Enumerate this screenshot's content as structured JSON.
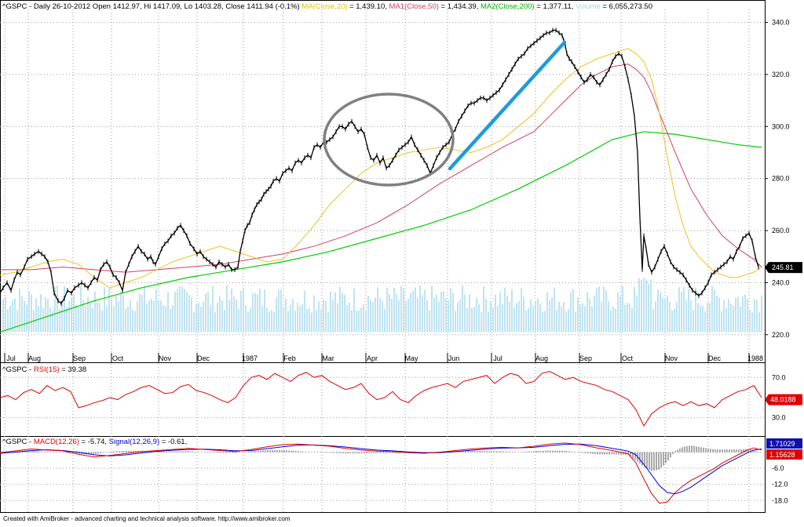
{
  "header": {
    "price": {
      "parts": [
        {
          "text": "^GSPC - Daily 26-10-2012 Open 1412.97, Hi 1417.09, Lo 1403.28, Close 1411.94 (-0.1%) ",
          "color": "#000000"
        },
        {
          "text": "MA(Close,20)",
          "color": "#e8c000"
        },
        {
          "text": " = 1,439.10, ",
          "color": "#000000"
        },
        {
          "text": "MA1(Close,50)",
          "color": "#d04060"
        },
        {
          "text": " = 1,434.39, ",
          "color": "#000000"
        },
        {
          "text": "MA2(Close,200)",
          "color": "#00b000"
        },
        {
          "text": " = 1,377.11, ",
          "color": "#000000"
        },
        {
          "text": "Volume",
          "color": "#a8d8e8"
        },
        {
          "text": " = 6,055,273.50",
          "color": "#000000"
        }
      ]
    },
    "rsi": {
      "parts": [
        {
          "text": "^GSPC - ",
          "color": "#000000"
        },
        {
          "text": "RSI(15)",
          "color": "#e00000"
        },
        {
          "text": " = 39.38",
          "color": "#000000"
        }
      ]
    },
    "macd": {
      "parts": [
        {
          "text": "^GSPC - ",
          "color": "#000000"
        },
        {
          "text": "MACD(12,26)",
          "color": "#e00000"
        },
        {
          "text": " = -5.74, ",
          "color": "#000000"
        },
        {
          "text": "Signal(12,26,9)",
          "color": "#0000e0"
        },
        {
          "text": " = -0.61, ",
          "color": "#000000"
        }
      ]
    }
  },
  "footer": {
    "credit": "Created with AmiBroker - advanced charting and technical analysis software. http://www.amibroker.com"
  },
  "colors": {
    "price": "#000000",
    "ma20": "#f0c020",
    "ma50": "#d04060",
    "ma200": "#00cc00",
    "volume": "#bfe3f0",
    "rsi": "#e00000",
    "macd": "#e00000",
    "signal": "#0000e0",
    "histogram": "#555555",
    "annotation_ellipse": "#808080",
    "annotation_line": "#1e9be0",
    "label_bg_blue": "#1010b0",
    "label_bg_black": "#000000"
  },
  "chart_data": [
    {
      "type": "line",
      "panel": "price",
      "months": [
        "Jul",
        "Aug",
        "Sep",
        "Oct",
        "Nov",
        "Dec",
        "1987",
        "Feb",
        "Mar",
        "Apr",
        "May",
        "Jun",
        "Jul",
        "Aug",
        "Sep",
        "Oct",
        "Nov",
        "Dec",
        "1988"
      ],
      "yticks": [
        220,
        240,
        260,
        280,
        300,
        320,
        340
      ],
      "ylim": [
        213,
        345
      ],
      "last_value_label": "245.81",
      "close_x": [
        0,
        4,
        9,
        14,
        18,
        22,
        26,
        31,
        35,
        40,
        44,
        49,
        53,
        57,
        61,
        65,
        69,
        74,
        78,
        82,
        86,
        91,
        95,
        100,
        104,
        108,
        112,
        116,
        120,
        124,
        128,
        132,
        136,
        140,
        144,
        148,
        152,
        156,
        160,
        164,
        168,
        172,
        176,
        180,
        184,
        188,
        192,
        195,
        198,
        202,
        206,
        210,
        214,
        218,
        222,
        226,
        230,
        234,
        238,
        242,
        247,
        251,
        255,
        259,
        263,
        267,
        271,
        275,
        279,
        283,
        287,
        291,
        295,
        299,
        303
      ],
      "close_y": [
        236,
        238,
        240,
        237,
        241,
        244,
        243,
        246,
        249,
        250,
        251,
        252,
        251,
        250,
        248,
        244,
        236,
        233,
        232,
        234,
        237,
        236,
        238,
        239,
        240,
        239,
        238,
        240,
        242,
        241,
        245,
        247,
        248,
        246,
        243,
        242,
        240,
        237,
        244,
        247,
        250,
        252,
        254,
        252,
        251,
        249,
        250,
        248,
        247,
        250,
        253,
        255,
        256,
        258,
        259,
        261,
        262,
        260,
        258,
        255,
        253,
        251,
        252,
        250,
        249,
        248,
        247,
        246,
        248,
        247,
        246,
        247,
        245,
        245,
        246
      ],
      "close2_x": [
        303,
        306,
        309,
        312,
        315,
        318,
        321,
        324,
        327,
        330,
        333,
        336,
        339,
        342,
        345,
        348,
        352,
        356,
        360,
        364,
        368,
        372,
        376,
        380,
        384,
        388,
        392,
        396,
        400,
        404,
        408,
        412,
        416,
        420,
        424,
        428,
        432,
        436,
        440,
        444,
        448,
        452,
        456,
        460,
        464,
        468,
        472,
        476,
        480,
        484,
        488,
        492,
        496,
        500,
        504,
        508,
        512,
        516,
        520,
        524,
        528,
        532,
        536,
        540,
        544,
        548,
        552,
        556,
        560,
        564,
        568,
        572
      ],
      "close2_y": [
        246,
        252,
        256,
        260,
        262,
        263,
        266,
        268,
        270,
        271,
        272,
        274,
        275,
        276,
        277,
        279,
        280,
        279,
        282,
        283,
        284,
        283,
        286,
        287,
        286,
        288,
        289,
        288,
        292,
        293,
        292,
        294,
        294,
        295,
        296,
        298,
        300,
        300,
        299,
        301,
        302,
        300,
        298,
        299,
        297,
        292,
        288,
        287,
        289,
        286,
        288,
        284,
        285,
        287,
        289,
        291,
        292,
        293,
        294,
        296,
        293,
        291,
        289,
        287,
        285,
        282,
        285,
        288,
        290,
        292,
        293,
        294
      ],
      "close3_x": [
        572,
        576,
        580,
        584,
        588,
        592,
        596,
        600,
        604,
        608,
        612,
        616,
        620,
        624,
        628,
        632,
        636,
        640,
        644,
        648,
        652,
        656,
        660,
        664,
        668,
        672,
        676,
        680,
        684,
        688,
        692,
        696,
        700,
        704,
        708,
        712,
        716,
        718,
        720,
        722,
        725,
        728,
        732,
        736,
        740,
        744,
        748,
        752,
        756,
        760,
        764,
        768,
        772,
        776,
        780,
        784,
        788,
        792,
        796,
        800,
        804,
        808,
        812,
        815,
        818,
        820,
        823,
        826,
        830,
        834,
        838,
        842,
        846,
        850,
        854,
        858,
        862,
        866,
        870,
        874,
        878,
        882,
        886,
        890,
        894,
        898,
        902,
        906,
        910,
        914,
        918,
        922,
        926,
        930,
        934,
        938,
        942,
        946,
        950,
        954,
        958,
        962,
        966
      ],
      "close3_y": [
        294,
        297,
        299,
        302,
        304,
        306,
        308,
        309,
        309,
        310,
        311,
        311,
        310,
        311,
        312,
        313,
        314,
        316,
        318,
        320,
        322,
        324,
        326,
        327,
        328,
        330,
        331,
        332,
        333,
        334,
        335,
        336,
        336,
        337,
        337,
        336,
        335,
        333,
        331,
        328,
        326,
        325,
        323,
        321,
        319,
        317,
        318,
        320,
        319,
        317,
        316,
        318,
        320,
        322,
        325,
        327,
        328,
        327,
        323,
        318,
        312,
        304,
        290,
        265,
        245,
        258,
        253,
        247,
        244,
        246,
        249,
        252,
        254,
        251,
        248,
        246,
        245,
        244,
        243,
        241,
        239,
        237,
        236,
        235,
        236,
        238,
        240,
        243,
        244,
        245,
        246,
        247,
        248,
        250,
        249,
        252,
        254,
        257,
        258,
        259,
        256,
        250,
        246
      ],
      "ma20": {
        "x": [
          0,
          20,
          40,
          60,
          80,
          100,
          120,
          140,
          160,
          180,
          200,
          220,
          240,
          260,
          280,
          300,
          320,
          340,
          360,
          380,
          400,
          420,
          440,
          460,
          480,
          500,
          520,
          540,
          560,
          580,
          600,
          620,
          640,
          660,
          680,
          700,
          720,
          740,
          760,
          780,
          800,
          810,
          820,
          830,
          840,
          850,
          860,
          870,
          880,
          890,
          900,
          910,
          920,
          930,
          940,
          950,
          960,
          970
        ],
        "y": [
          243,
          244,
          246,
          248,
          249,
          247,
          242,
          238,
          240,
          242,
          245,
          248,
          250,
          252,
          254,
          252,
          250,
          248,
          249,
          255,
          262,
          270,
          276,
          282,
          286,
          288,
          290,
          291,
          292,
          291,
          290,
          292,
          295,
          300,
          305,
          312,
          318,
          323,
          326,
          328,
          330,
          328,
          325,
          318,
          305,
          288,
          273,
          262,
          254,
          250,
          247,
          244,
          243,
          242,
          242,
          243,
          244,
          246
        ]
      },
      "ma50": {
        "x": [
          0,
          40,
          80,
          120,
          160,
          200,
          240,
          280,
          320,
          360,
          400,
          440,
          480,
          520,
          560,
          600,
          640,
          680,
          700,
          720,
          740,
          760,
          780,
          800,
          810,
          820,
          830,
          840,
          860,
          880,
          900,
          920,
          940,
          960,
          970
        ],
        "y": [
          245,
          245,
          246,
          245,
          244,
          245,
          246,
          247,
          249,
          251,
          254,
          258,
          263,
          270,
          278,
          285,
          292,
          298,
          304,
          310,
          316,
          320,
          323,
          324,
          322,
          319,
          313,
          305,
          290,
          276,
          266,
          258,
          253,
          249,
          246
        ]
      },
      "ma200": {
        "x": [
          0,
          60,
          120,
          180,
          240,
          300,
          360,
          420,
          480,
          540,
          600,
          660,
          720,
          780,
          820,
          860,
          900,
          940,
          970
        ],
        "y": [
          221,
          227,
          233,
          238,
          242,
          245,
          248,
          252,
          257,
          262,
          268,
          276,
          285,
          295,
          298,
          297,
          295,
          293,
          292
        ]
      },
      "volume_bottom_value": 221
    },
    {
      "type": "line",
      "panel": "rsi",
      "title_series": "RSI(15)",
      "yticks": [
        30,
        70
      ],
      "ylim": [
        15,
        85
      ],
      "last_value_label": "48.0188",
      "x": [
        0,
        10,
        20,
        30,
        40,
        50,
        60,
        70,
        80,
        90,
        100,
        110,
        120,
        130,
        140,
        150,
        160,
        170,
        180,
        190,
        200,
        210,
        220,
        230,
        240,
        250,
        260,
        270,
        280,
        290,
        300,
        310,
        320,
        330,
        340,
        350,
        360,
        370,
        380,
        390,
        400,
        410,
        420,
        430,
        440,
        450,
        460,
        470,
        480,
        490,
        500,
        510,
        520,
        530,
        540,
        550,
        560,
        570,
        580,
        590,
        600,
        610,
        620,
        630,
        640,
        650,
        660,
        670,
        680,
        690,
        700,
        710,
        720,
        730,
        740,
        750,
        760,
        770,
        780,
        790,
        800,
        810,
        815,
        820,
        830,
        840,
        850,
        860,
        870,
        880,
        890,
        900,
        910,
        920,
        930,
        940,
        950,
        960,
        970
      ],
      "y": [
        50,
        52,
        48,
        55,
        58,
        54,
        62,
        57,
        60,
        56,
        40,
        42,
        45,
        47,
        50,
        48,
        53,
        56,
        60,
        62,
        58,
        54,
        55,
        61,
        63,
        57,
        55,
        52,
        48,
        45,
        50,
        62,
        70,
        72,
        68,
        74,
        70,
        66,
        72,
        75,
        70,
        72,
        66,
        62,
        58,
        60,
        64,
        54,
        48,
        50,
        56,
        48,
        45,
        52,
        57,
        60,
        62,
        64,
        60,
        66,
        68,
        70,
        72,
        64,
        70,
        74,
        72,
        64,
        66,
        74,
        76,
        72,
        68,
        70,
        66,
        64,
        62,
        58,
        56,
        52,
        48,
        38,
        30,
        22,
        34,
        40,
        44,
        46,
        42,
        46,
        42,
        44,
        40,
        48,
        52,
        56,
        58,
        62,
        50
      ]
    },
    {
      "type": "line",
      "panel": "macd",
      "yticks": [
        -6,
        -12,
        -18
      ],
      "ylim": [
        -22,
        6
      ],
      "last_value_labels": [
        "1.71029",
        "1.15628"
      ],
      "macd": {
        "x": [
          0,
          20,
          40,
          60,
          80,
          100,
          120,
          140,
          160,
          180,
          200,
          220,
          240,
          260,
          280,
          300,
          320,
          340,
          360,
          380,
          400,
          420,
          440,
          460,
          480,
          500,
          520,
          540,
          560,
          580,
          600,
          620,
          640,
          660,
          680,
          700,
          720,
          740,
          760,
          780,
          800,
          810,
          820,
          830,
          840,
          850,
          860,
          870,
          880,
          890,
          900,
          910,
          920,
          930,
          940,
          950,
          960,
          970
        ],
        "y": [
          -0.2,
          0.5,
          1.2,
          0.8,
          0.5,
          -0.8,
          -1.8,
          -1.2,
          -0.5,
          0.2,
          0.6,
          1.0,
          1.4,
          1.0,
          0.6,
          0.2,
          1.0,
          2.0,
          2.8,
          3.0,
          2.6,
          2.2,
          1.4,
          0.8,
          0.4,
          0.2,
          -0.2,
          -0.4,
          0.0,
          0.6,
          1.2,
          1.6,
          1.8,
          1.6,
          2.2,
          3.0,
          3.4,
          2.8,
          1.6,
          0.6,
          -0.6,
          -4.0,
          -10.0,
          -15.5,
          -19.0,
          -18.5,
          -15.0,
          -12.5,
          -10.5,
          -9.0,
          -7.5,
          -6.0,
          -4.0,
          -2.5,
          -1.0,
          0.6,
          1.6,
          0.8
        ]
      },
      "signal": {
        "x": [
          0,
          20,
          40,
          60,
          80,
          100,
          120,
          140,
          160,
          180,
          200,
          220,
          240,
          260,
          280,
          300,
          320,
          340,
          360,
          380,
          400,
          420,
          440,
          460,
          480,
          500,
          520,
          540,
          560,
          580,
          600,
          620,
          640,
          660,
          680,
          700,
          720,
          740,
          760,
          780,
          800,
          810,
          820,
          830,
          840,
          850,
          860,
          870,
          880,
          890,
          900,
          910,
          920,
          930,
          940,
          950,
          960,
          970
        ],
        "y": [
          -0.4,
          0.0,
          0.6,
          0.9,
          0.6,
          0.0,
          -1.0,
          -1.4,
          -1.0,
          -0.3,
          0.3,
          0.7,
          1.0,
          1.1,
          0.9,
          0.5,
          0.6,
          1.3,
          2.0,
          2.6,
          2.7,
          2.4,
          1.9,
          1.3,
          0.8,
          0.5,
          0.1,
          -0.2,
          -0.2,
          0.2,
          0.7,
          1.2,
          1.5,
          1.6,
          1.8,
          2.4,
          2.9,
          3.0,
          2.4,
          1.4,
          0.4,
          -1.0,
          -4.5,
          -8.5,
          -12.5,
          -15.0,
          -15.5,
          -14.5,
          -13.0,
          -11.0,
          -9.0,
          -7.0,
          -5.0,
          -3.5,
          -2.0,
          -0.5,
          0.8,
          1.2
        ]
      }
    }
  ]
}
